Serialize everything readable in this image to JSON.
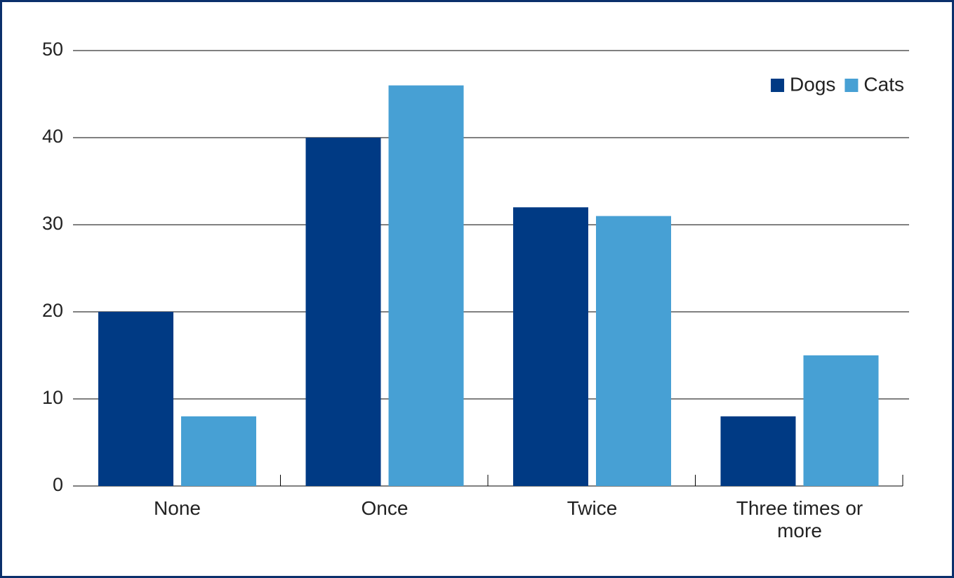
{
  "chart_data": {
    "type": "bar",
    "categories": [
      "None",
      "Once",
      "Twice",
      "Three times or more"
    ],
    "series": [
      {
        "name": "Dogs",
        "color": "#003a84",
        "values": [
          20,
          40,
          32,
          8
        ]
      },
      {
        "name": "Cats",
        "color": "#47a0d4",
        "values": [
          8,
          46,
          31,
          15
        ]
      }
    ],
    "ylim": [
      0,
      50
    ],
    "yticks": [
      0,
      10,
      20,
      30,
      40,
      50
    ],
    "grid": true,
    "legend": "top-right"
  }
}
